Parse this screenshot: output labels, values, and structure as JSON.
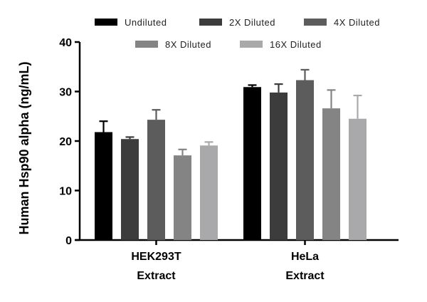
{
  "chart_data": {
    "type": "bar",
    "title": "",
    "xlabel": "",
    "ylabel": "Human Hsp90 alpha (ng/mL)",
    "ylim": [
      0,
      40
    ],
    "yticks": [
      0,
      10,
      20,
      30,
      40
    ],
    "legend_position": "top",
    "groups": [
      {
        "label_line1": "HEK293T",
        "label_line2": "Extract"
      },
      {
        "label_line1": "HeLa",
        "label_line2": "Extract"
      }
    ],
    "series": [
      {
        "name": "Undiluted",
        "color": "#000000",
        "values": [
          21.8,
          30.9
        ],
        "errors": [
          2.2,
          0.4
        ]
      },
      {
        "name": "2X Diluted",
        "color": "#3c3c3c",
        "values": [
          20.4,
          29.8
        ],
        "errors": [
          0.4,
          1.7
        ]
      },
      {
        "name": "4X Diluted",
        "color": "#5c5c5c",
        "values": [
          24.3,
          32.3
        ],
        "errors": [
          2.0,
          2.1
        ]
      },
      {
        "name": "8X Diluted",
        "color": "#848484",
        "values": [
          17.1,
          26.6
        ],
        "errors": [
          1.2,
          3.7
        ]
      },
      {
        "name": "16X Diluted",
        "color": "#a9a9ab",
        "values": [
          19.1,
          24.5
        ],
        "errors": [
          0.7,
          4.7
        ]
      }
    ]
  }
}
